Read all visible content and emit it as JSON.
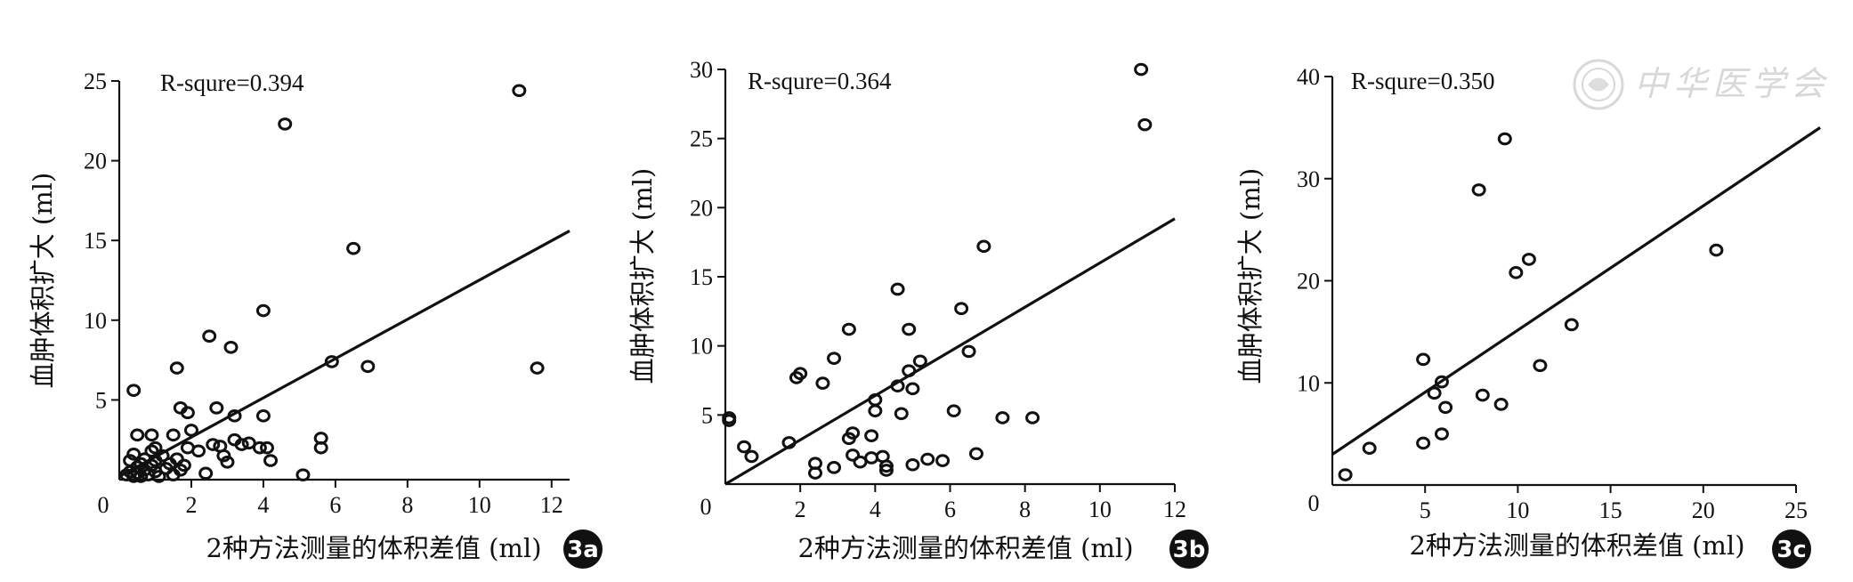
{
  "watermark": {
    "text": "中华医学会",
    "icon": "society-seal-icon"
  },
  "chart_data": [
    {
      "type": "scatter",
      "panel_label": "3a",
      "annotation": "R-squre=0.394",
      "xlabel": "2种方法测量的体积差值 (ml)",
      "ylabel": "血肿体积扩大 (ml)",
      "xlim": [
        0,
        12.5
      ],
      "ylim": [
        0,
        25
      ],
      "xticks": [
        0,
        2,
        4,
        6,
        8,
        10,
        12
      ],
      "yticks": [
        5,
        10,
        15,
        20,
        25
      ],
      "fit": {
        "x": [
          0,
          12.5
        ],
        "y": [
          0.2,
          15.6
        ]
      },
      "points": [
        [
          0.2,
          0.3
        ],
        [
          0.3,
          0.5
        ],
        [
          0.3,
          1.2
        ],
        [
          0.4,
          0.2
        ],
        [
          0.4,
          1.6
        ],
        [
          0.5,
          0.8
        ],
        [
          0.5,
          0.4
        ],
        [
          0.6,
          1.0
        ],
        [
          0.6,
          0.2
        ],
        [
          0.7,
          1.3
        ],
        [
          0.7,
          0.6
        ],
        [
          0.8,
          0.3
        ],
        [
          0.9,
          1.8
        ],
        [
          0.9,
          0.9
        ],
        [
          1.0,
          0.5
        ],
        [
          1.0,
          1.2
        ],
        [
          1.1,
          0.2
        ],
        [
          1.2,
          1.5
        ],
        [
          1.3,
          0.7
        ],
        [
          1.4,
          1.0
        ],
        [
          1.5,
          0.3
        ],
        [
          1.6,
          1.3
        ],
        [
          1.7,
          0.6
        ],
        [
          1.8,
          0.9
        ],
        [
          0.4,
          5.6
        ],
        [
          0.5,
          2.8
        ],
        [
          0.9,
          2.8
        ],
        [
          1.0,
          2.0
        ],
        [
          1.5,
          2.8
        ],
        [
          1.6,
          7.0
        ],
        [
          1.7,
          4.5
        ],
        [
          1.9,
          4.2
        ],
        [
          1.9,
          2.0
        ],
        [
          2.0,
          3.1
        ],
        [
          2.2,
          1.8
        ],
        [
          2.4,
          0.4
        ],
        [
          2.5,
          9.0
        ],
        [
          2.6,
          2.2
        ],
        [
          2.7,
          4.5
        ],
        [
          2.8,
          2.1
        ],
        [
          2.9,
          1.5
        ],
        [
          3.0,
          1.1
        ],
        [
          3.1,
          8.3
        ],
        [
          3.2,
          4.0
        ],
        [
          3.2,
          2.5
        ],
        [
          3.4,
          2.2
        ],
        [
          3.6,
          2.3
        ],
        [
          3.9,
          2.0
        ],
        [
          4.0,
          4.0
        ],
        [
          4.0,
          10.6
        ],
        [
          4.1,
          2.0
        ],
        [
          4.2,
          1.2
        ],
        [
          4.6,
          22.3
        ],
        [
          5.1,
          0.3
        ],
        [
          5.6,
          2.6
        ],
        [
          5.6,
          2.0
        ],
        [
          5.9,
          7.4
        ],
        [
          6.5,
          14.5
        ],
        [
          6.9,
          7.1
        ],
        [
          11.1,
          24.4
        ],
        [
          11.6,
          7.0
        ]
      ]
    },
    {
      "type": "scatter",
      "panel_label": "3b",
      "annotation": "R-squre=0.364",
      "xlabel": "2种方法测量的体积差值 (ml)",
      "ylabel": "血肿体积扩大 (ml)",
      "xlim": [
        0,
        12
      ],
      "ylim": [
        0,
        30
      ],
      "xticks": [
        0,
        2,
        4,
        6,
        8,
        10,
        12
      ],
      "yticks": [
        5,
        10,
        15,
        20,
        25,
        30
      ],
      "fit": {
        "x": [
          0,
          12
        ],
        "y": [
          0,
          19.2
        ]
      },
      "points": [
        [
          0.1,
          4.8
        ],
        [
          0.1,
          4.6
        ],
        [
          0.5,
          2.7
        ],
        [
          0.7,
          2.0
        ],
        [
          1.7,
          3.0
        ],
        [
          1.9,
          7.7
        ],
        [
          2.0,
          8.0
        ],
        [
          2.4,
          1.5
        ],
        [
          2.4,
          0.8
        ],
        [
          2.6,
          7.3
        ],
        [
          2.9,
          9.1
        ],
        [
          2.9,
          1.2
        ],
        [
          3.3,
          11.2
        ],
        [
          3.3,
          3.3
        ],
        [
          3.4,
          3.7
        ],
        [
          3.4,
          2.1
        ],
        [
          3.6,
          1.6
        ],
        [
          3.9,
          1.9
        ],
        [
          3.9,
          3.5
        ],
        [
          4.0,
          6.1
        ],
        [
          4.0,
          5.3
        ],
        [
          4.2,
          2.0
        ],
        [
          4.3,
          1.3
        ],
        [
          4.3,
          1.0
        ],
        [
          4.6,
          14.1
        ],
        [
          4.6,
          7.1
        ],
        [
          4.7,
          5.1
        ],
        [
          4.9,
          11.2
        ],
        [
          4.9,
          8.2
        ],
        [
          5.0,
          6.9
        ],
        [
          5.0,
          1.4
        ],
        [
          5.2,
          8.9
        ],
        [
          5.4,
          1.8
        ],
        [
          5.8,
          1.7
        ],
        [
          6.1,
          5.3
        ],
        [
          6.3,
          12.7
        ],
        [
          6.5,
          9.6
        ],
        [
          6.7,
          2.2
        ],
        [
          6.9,
          17.2
        ],
        [
          7.4,
          4.8
        ],
        [
          8.2,
          4.8
        ],
        [
          11.1,
          30.0
        ],
        [
          11.2,
          26.0
        ]
      ]
    },
    {
      "type": "scatter",
      "panel_label": "3c",
      "annotation": "R-squre=0.350",
      "xlabel": "2种方法测量的体积差值 (ml)",
      "ylabel": "血肿体积扩大 (ml)",
      "xlim": [
        0,
        25
      ],
      "ylim": [
        0,
        40
      ],
      "xticks": [
        0,
        5,
        10,
        15,
        20,
        25
      ],
      "yticks": [
        10,
        20,
        30,
        40
      ],
      "fit": {
        "x": [
          0,
          26.3
        ],
        "y": [
          3.0,
          35.0
        ]
      },
      "points": [
        [
          0.7,
          1.0
        ],
        [
          2.0,
          3.6
        ],
        [
          4.9,
          12.3
        ],
        [
          4.9,
          4.1
        ],
        [
          5.5,
          9.0
        ],
        [
          5.9,
          10.1
        ],
        [
          5.9,
          5.0
        ],
        [
          6.1,
          7.6
        ],
        [
          7.9,
          28.9
        ],
        [
          8.1,
          8.8
        ],
        [
          9.1,
          7.9
        ],
        [
          9.3,
          33.9
        ],
        [
          9.9,
          20.8
        ],
        [
          10.6,
          22.1
        ],
        [
          11.2,
          11.7
        ],
        [
          12.9,
          15.7
        ],
        [
          20.7,
          23.0
        ]
      ]
    }
  ]
}
